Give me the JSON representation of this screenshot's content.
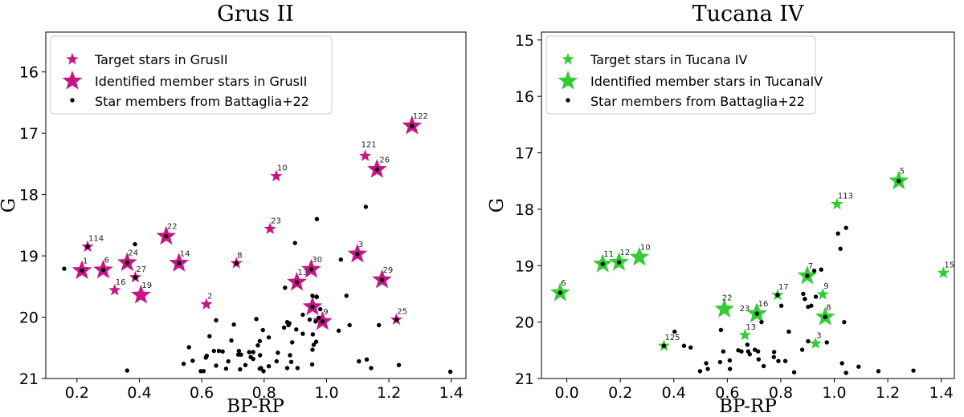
{
  "chart_data": [
    {
      "type": "scatter",
      "title": "Grus II",
      "xlabel": "BP-RP",
      "ylabel": "G",
      "xlim": [
        0.1,
        1.447
      ],
      "ylim": [
        21,
        15.35
      ],
      "y_inverted": true,
      "xticks": [
        "0.2",
        "0.4",
        "0.6",
        "0.8",
        "1.0",
        "1.2",
        "1.4"
      ],
      "yticks": [
        "16",
        "17",
        "18",
        "19",
        "20",
        "21"
      ],
      "grid": false,
      "legend_position": "top-left",
      "colors": {
        "target": "#C71585",
        "member": "#C71585",
        "battaglia": "#000000"
      },
      "legend": [
        {
          "marker": "small-star",
          "label": "Target stars in GrusII"
        },
        {
          "marker": "large-star",
          "label": "Identified member stars in GrusII"
        },
        {
          "marker": "dot",
          "label": "Star members from Battaglia+22"
        }
      ],
      "target_stars": [
        {
          "id": "121",
          "x": 1.124,
          "y": 17.37
        },
        {
          "id": "10",
          "x": 0.839,
          "y": 17.7
        },
        {
          "id": "23",
          "x": 0.819,
          "y": 18.56
        },
        {
          "id": "114",
          "x": 0.234,
          "y": 18.85
        },
        {
          "id": "8",
          "x": 0.711,
          "y": 19.12
        },
        {
          "id": "27",
          "x": 0.387,
          "y": 19.35
        },
        {
          "id": "16",
          "x": 0.321,
          "y": 19.56
        },
        {
          "id": "2",
          "x": 0.615,
          "y": 19.79
        },
        {
          "id": "25",
          "x": 1.224,
          "y": 20.04
        }
      ],
      "member_stars": [
        {
          "id": "122",
          "x": 1.274,
          "y": 16.88
        },
        {
          "id": "26",
          "x": 1.162,
          "y": 17.59
        },
        {
          "id": "22",
          "x": 0.486,
          "y": 18.68
        },
        {
          "id": "3",
          "x": 1.099,
          "y": 18.97
        },
        {
          "id": "24",
          "x": 0.361,
          "y": 19.11
        },
        {
          "id": "14",
          "x": 0.527,
          "y": 19.12
        },
        {
          "id": "1",
          "x": 0.216,
          "y": 19.24
        },
        {
          "id": "6",
          "x": 0.284,
          "y": 19.23
        },
        {
          "id": "30",
          "x": 0.951,
          "y": 19.22
        },
        {
          "id": "29",
          "x": 1.178,
          "y": 19.39
        },
        {
          "id": "13",
          "x": 0.905,
          "y": 19.43
        },
        {
          "id": "19",
          "x": 0.405,
          "y": 19.64
        },
        {
          "id": "4",
          "x": 0.955,
          "y": 19.83
        },
        {
          "id": "9",
          "x": 0.987,
          "y": 20.07
        }
      ],
      "battaglia": [
        [
          1.274,
          16.88
        ],
        [
          1.162,
          17.59
        ],
        [
          0.486,
          18.68
        ],
        [
          0.234,
          18.85
        ],
        [
          1.099,
          18.97
        ],
        [
          0.361,
          19.11
        ],
        [
          0.527,
          19.12
        ],
        [
          0.711,
          19.12
        ],
        [
          0.216,
          19.24
        ],
        [
          0.284,
          19.23
        ],
        [
          0.951,
          19.22
        ],
        [
          0.387,
          19.35
        ],
        [
          1.178,
          19.39
        ],
        [
          0.905,
          19.43
        ],
        [
          0.955,
          19.83
        ],
        [
          1.224,
          20.04
        ],
        [
          0.987,
          20.07
        ],
        [
          0.159,
          19.21
        ],
        [
          0.386,
          18.81
        ],
        [
          0.969,
          18.4
        ],
        [
          1.126,
          18.2
        ],
        [
          0.899,
          18.79
        ],
        [
          1.046,
          19.06
        ],
        [
          0.867,
          19.52
        ],
        [
          1.064,
          19.65
        ],
        [
          0.955,
          19.65
        ],
        [
          0.969,
          19.67
        ],
        [
          0.98,
          19.87
        ],
        [
          0.924,
          19.96
        ],
        [
          0.946,
          20.04
        ],
        [
          0.975,
          20.01
        ],
        [
          0.965,
          20.07
        ],
        [
          1.039,
          20.22
        ],
        [
          1.074,
          20.13
        ],
        [
          1.168,
          20.13
        ],
        [
          0.646,
          20.05
        ],
        [
          0.703,
          20.12
        ],
        [
          0.775,
          20.03
        ],
        [
          0.874,
          20.08
        ],
        [
          0.881,
          20.1
        ],
        [
          0.878,
          20.13
        ],
        [
          0.864,
          20.17
        ],
        [
          0.903,
          20.2
        ],
        [
          0.796,
          20.21
        ],
        [
          0.924,
          20.27
        ],
        [
          0.956,
          20.28
        ],
        [
          0.815,
          20.33
        ],
        [
          0.625,
          20.31
        ],
        [
          0.695,
          20.38
        ],
        [
          0.786,
          20.39
        ],
        [
          0.89,
          20.41
        ],
        [
          0.959,
          20.45
        ],
        [
          0.967,
          20.4
        ],
        [
          0.78,
          20.46
        ],
        [
          0.559,
          20.49
        ],
        [
          0.639,
          20.55
        ],
        [
          0.655,
          20.55
        ],
        [
          0.667,
          20.56
        ],
        [
          0.719,
          20.55
        ],
        [
          0.752,
          20.57
        ],
        [
          0.765,
          20.57
        ],
        [
          0.955,
          20.53
        ],
        [
          0.844,
          20.58
        ],
        [
          0.613,
          20.66
        ],
        [
          0.616,
          20.63
        ],
        [
          0.717,
          20.61
        ],
        [
          0.726,
          20.61
        ],
        [
          0.757,
          20.65
        ],
        [
          0.765,
          20.68
        ],
        [
          0.787,
          20.62
        ],
        [
          0.883,
          20.62
        ],
        [
          0.571,
          20.71
        ],
        [
          0.685,
          20.72
        ],
        [
          0.84,
          20.72
        ],
        [
          0.887,
          20.73
        ],
        [
          1.104,
          20.72
        ],
        [
          1.129,
          20.69
        ],
        [
          0.542,
          20.76
        ],
        [
          0.646,
          20.79
        ],
        [
          0.74,
          20.78
        ],
        [
          0.678,
          20.84
        ],
        [
          0.723,
          20.85
        ],
        [
          0.786,
          20.84
        ],
        [
          0.79,
          20.83
        ],
        [
          0.815,
          20.8
        ],
        [
          0.874,
          20.83
        ],
        [
          0.907,
          20.83
        ],
        [
          0.954,
          20.77
        ],
        [
          1.143,
          20.83
        ],
        [
          1.232,
          20.78
        ],
        [
          0.361,
          20.87
        ],
        [
          0.597,
          20.88
        ],
        [
          0.606,
          20.88
        ],
        [
          0.798,
          20.88
        ],
        [
          1.397,
          20.89
        ]
      ]
    },
    {
      "type": "scatter",
      "title": "Tucana IV",
      "xlabel": "BP-RP",
      "ylabel": "G",
      "xlim": [
        -0.095,
        1.449
      ],
      "ylim": [
        21,
        14.86
      ],
      "y_inverted": true,
      "xticks": [
        "0.0",
        "0.2",
        "0.4",
        "0.6",
        "0.8",
        "1.0",
        "1.2",
        "1.4"
      ],
      "yticks": [
        "15",
        "16",
        "17",
        "18",
        "19",
        "20",
        "21"
      ],
      "grid": false,
      "legend_position": "top-left",
      "colors": {
        "target": "#32CD32",
        "member": "#32CD32",
        "battaglia": "#000000"
      },
      "legend": [
        {
          "marker": "small-star",
          "label": "Target stars in Tucana IV"
        },
        {
          "marker": "large-star",
          "label": "Identified member stars in TucanaIV"
        },
        {
          "marker": "dot",
          "label": "Star members from Battaglia+22"
        }
      ],
      "target_stars": [
        {
          "id": "113",
          "x": 1.01,
          "y": 17.91
        },
        {
          "id": "15",
          "x": 1.408,
          "y": 19.13
        },
        {
          "id": "17",
          "x": 0.788,
          "y": 19.52
        },
        {
          "id": "9",
          "x": 0.957,
          "y": 19.51
        },
        {
          "id": "13",
          "x": 0.666,
          "y": 20.23
        },
        {
          "id": "3",
          "x": 0.93,
          "y": 20.38
        },
        {
          "id": "125",
          "x": 0.363,
          "y": 20.42
        }
      ],
      "member_stars": [
        {
          "id": "5",
          "x": 1.241,
          "y": 17.5
        },
        {
          "id": "10",
          "x": 0.271,
          "y": 18.85
        },
        {
          "id": "11",
          "x": 0.134,
          "y": 18.97
        },
        {
          "id": "12",
          "x": 0.195,
          "y": 18.94
        },
        {
          "id": "6",
          "x": -0.025,
          "y": 19.48
        },
        {
          "id": "7",
          "x": 0.899,
          "y": 19.18
        },
        {
          "id": "22",
          "x": 0.589,
          "y": 19.77
        },
        {
          "id": "23",
          "x": 0.709,
          "y": 19.85
        },
        {
          "id": "16",
          "x": 0.712,
          "y": 19.85
        },
        {
          "id": "8",
          "x": 0.966,
          "y": 19.91
        }
      ],
      "battaglia": [
        [
          1.241,
          17.5
        ],
        [
          0.134,
          18.97
        ],
        [
          0.195,
          18.94
        ],
        [
          -0.025,
          19.48
        ],
        [
          0.899,
          19.18
        ],
        [
          0.788,
          19.52
        ],
        [
          0.711,
          19.85
        ],
        [
          0.966,
          19.91
        ],
        [
          0.363,
          20.42
        ],
        [
          1.044,
          18.33
        ],
        [
          1.014,
          18.43
        ],
        [
          1.023,
          18.7
        ],
        [
          0.925,
          19.09
        ],
        [
          0.951,
          19.07
        ],
        [
          0.884,
          19.5
        ],
        [
          0.89,
          19.59
        ],
        [
          0.931,
          19.55
        ],
        [
          0.902,
          19.73
        ],
        [
          0.914,
          19.71
        ],
        [
          0.802,
          19.71
        ],
        [
          0.728,
          20.0
        ],
        [
          1.037,
          20.0
        ],
        [
          0.83,
          20.17
        ],
        [
          0.403,
          20.17
        ],
        [
          0.576,
          20.14
        ],
        [
          0.902,
          20.34
        ],
        [
          0.972,
          20.36
        ],
        [
          0.438,
          20.42
        ],
        [
          0.463,
          20.45
        ],
        [
          0.675,
          20.4
        ],
        [
          0.585,
          20.52
        ],
        [
          0.641,
          20.5
        ],
        [
          0.653,
          20.52
        ],
        [
          0.678,
          20.52
        ],
        [
          0.684,
          20.57
        ],
        [
          0.703,
          20.49
        ],
        [
          0.715,
          20.52
        ],
        [
          0.775,
          20.53
        ],
        [
          0.88,
          20.49
        ],
        [
          0.717,
          20.66
        ],
        [
          0.774,
          20.62
        ],
        [
          0.791,
          20.69
        ],
        [
          0.817,
          20.69
        ],
        [
          0.609,
          20.68
        ],
        [
          0.573,
          20.71
        ],
        [
          0.521,
          20.73
        ],
        [
          1.029,
          20.73
        ],
        [
          0.61,
          20.83
        ],
        [
          0.527,
          20.83
        ],
        [
          0.736,
          20.78
        ],
        [
          1.091,
          20.79
        ],
        [
          0.498,
          20.87
        ],
        [
          0.85,
          20.89
        ],
        [
          1.044,
          20.9
        ],
        [
          1.165,
          20.87
        ],
        [
          1.296,
          20.86
        ]
      ]
    }
  ]
}
